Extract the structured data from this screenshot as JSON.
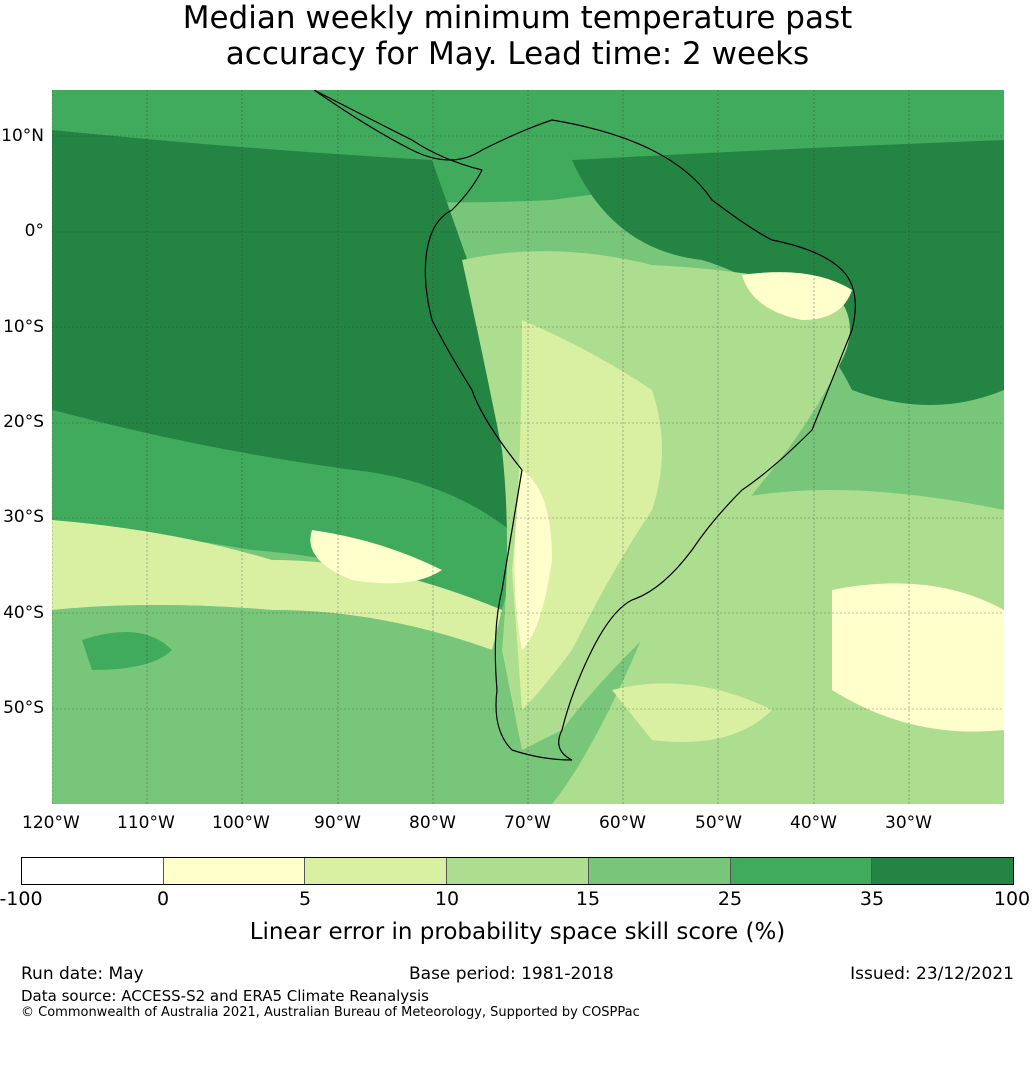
{
  "title": {
    "line1": "Median weekly minimum temperature past",
    "line2": "accuracy for May. Lead time: 2 weeks"
  },
  "map": {
    "region": "South America and surrounding oceans",
    "lat_labels": [
      "10°N",
      "0°",
      "10°S",
      "20°S",
      "30°S",
      "40°S",
      "50°S"
    ],
    "lon_labels": [
      "120°W",
      "110°W",
      "100°W",
      "90°W",
      "80°W",
      "70°W",
      "60°W",
      "50°W",
      "40°W",
      "30°W"
    ],
    "gridlines": true
  },
  "colorbar": {
    "ticks": [
      "-100",
      "0",
      "5",
      "10",
      "15",
      "25",
      "35",
      "100"
    ],
    "colors": [
      "#ffffff",
      "#ffffcc",
      "#d9f0a3",
      "#addd8e",
      "#78c679",
      "#41ab5d",
      "#238443"
    ],
    "label": "Linear error in probability space skill score (%)"
  },
  "footer": {
    "run_date": "Run date: May",
    "base_period": "Base period: 1981-2018",
    "issued": "Issued: 23/12/2021",
    "data_source": "Data source: ACCESS-S2 and ERA5 Climate Reanalysis",
    "copyright": "© Commonwealth of Australia 2021, Australian Bureau of Meteorology, Supported by COSPPac"
  }
}
